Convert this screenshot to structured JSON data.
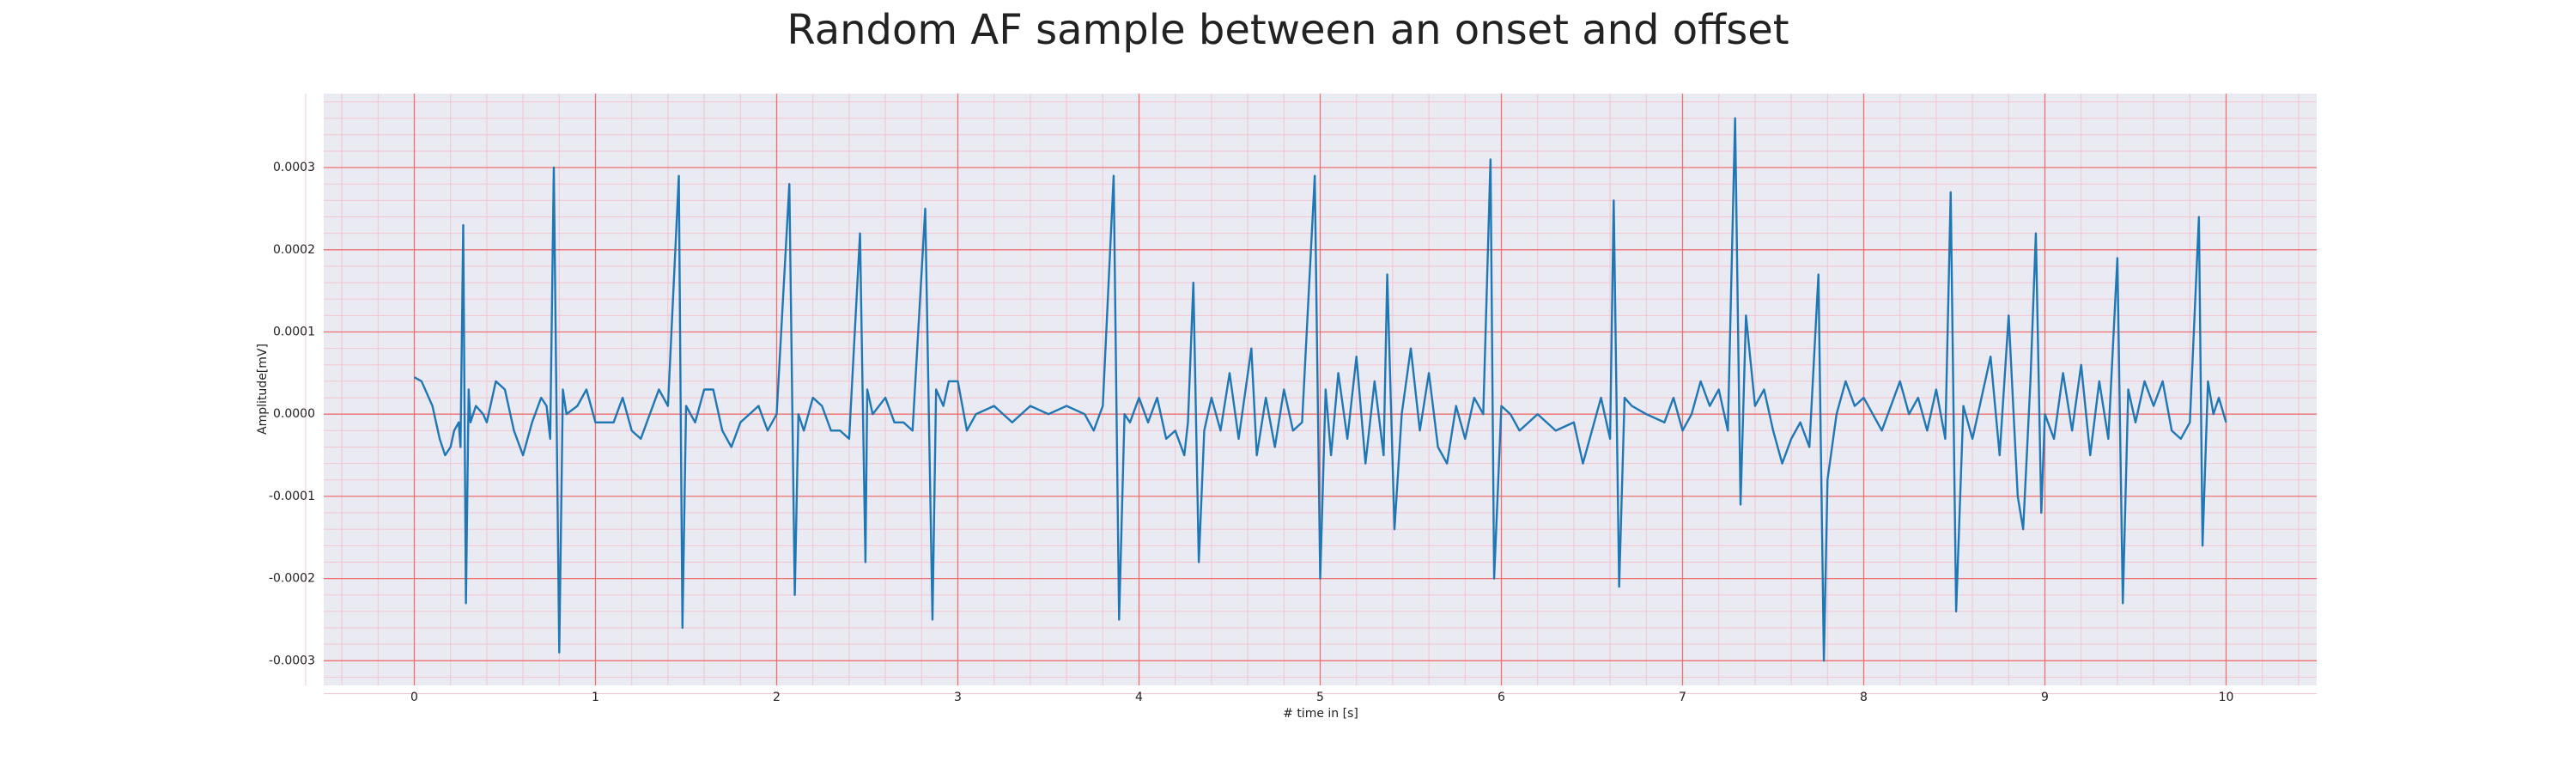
{
  "chart_data": {
    "type": "line",
    "title": "Random AF sample between an onset and offset",
    "xlabel": "# time in [s]",
    "ylabel": "Amplitude[mV]",
    "xlim": [
      -0.5,
      10.5
    ],
    "ylim": [
      -0.00033,
      0.00039
    ],
    "xticks": [
      0,
      1,
      2,
      3,
      4,
      5,
      6,
      7,
      8,
      9,
      10
    ],
    "yticks": [
      -0.0003,
      -0.0002,
      -0.0001,
      {
        "value": 0,
        "label": "0.0000"
      },
      0.0001,
      0.0002,
      0.0003
    ],
    "grid": true,
    "minor_grid": 5,
    "grid_color": "#f07070",
    "minor_grid_color": "#f3c4cf",
    "background": "#eaeaf2",
    "series": [
      {
        "color": "#1f77b4",
        "x": [
          0.0,
          0.04,
          0.1,
          0.14,
          0.17,
          0.2,
          0.22,
          0.245,
          0.255,
          0.27,
          0.285,
          0.3,
          0.31,
          0.34,
          0.38,
          0.4,
          0.45,
          0.5,
          0.55,
          0.6,
          0.65,
          0.7,
          0.73,
          0.75,
          0.77,
          0.8,
          0.82,
          0.84,
          0.9,
          0.95,
          1.0,
          1.05,
          1.1,
          1.15,
          1.2,
          1.25,
          1.3,
          1.35,
          1.4,
          1.46,
          1.48,
          1.5,
          1.55,
          1.6,
          1.65,
          1.7,
          1.75,
          1.8,
          1.85,
          1.9,
          1.95,
          2.0,
          2.07,
          2.1,
          2.12,
          2.15,
          2.2,
          2.25,
          2.3,
          2.35,
          2.4,
          2.46,
          2.49,
          2.5,
          2.53,
          2.6,
          2.65,
          2.7,
          2.75,
          2.82,
          2.86,
          2.88,
          2.92,
          2.95,
          3.0,
          3.05,
          3.1,
          3.2,
          3.3,
          3.4,
          3.5,
          3.6,
          3.7,
          3.75,
          3.8,
          3.86,
          3.89,
          3.92,
          3.95,
          4.0,
          4.05,
          4.1,
          4.15,
          4.2,
          4.25,
          4.27,
          4.3,
          4.33,
          4.36,
          4.4,
          4.45,
          4.5,
          4.55,
          4.62,
          4.65,
          4.7,
          4.75,
          4.8,
          4.85,
          4.9,
          4.97,
          5.0,
          5.03,
          5.06,
          5.1,
          5.15,
          5.2,
          5.25,
          5.3,
          5.35,
          5.37,
          5.41,
          5.45,
          5.5,
          5.55,
          5.6,
          5.65,
          5.7,
          5.75,
          5.8,
          5.85,
          5.9,
          5.94,
          5.96,
          6.0,
          6.05,
          6.1,
          6.2,
          6.3,
          6.4,
          6.45,
          6.5,
          6.55,
          6.6,
          6.62,
          6.65,
          6.68,
          6.72,
          6.8,
          6.9,
          6.95,
          7.0,
          7.05,
          7.1,
          7.15,
          7.2,
          7.25,
          7.29,
          7.32,
          7.35,
          7.4,
          7.45,
          7.5,
          7.55,
          7.6,
          7.65,
          7.7,
          7.75,
          7.78,
          7.8,
          7.85,
          7.9,
          7.95,
          8.0,
          8.1,
          8.2,
          8.25,
          8.3,
          8.35,
          8.4,
          8.45,
          8.48,
          8.51,
          8.55,
          8.6,
          8.65,
          8.7,
          8.75,
          8.8,
          8.85,
          8.88,
          8.92,
          8.95,
          8.98,
          9.0,
          9.05,
          9.1,
          9.15,
          9.2,
          9.25,
          9.3,
          9.35,
          9.4,
          9.43,
          9.46,
          9.5,
          9.55,
          9.6,
          9.65,
          9.7,
          9.75,
          9.8,
          9.85,
          9.87,
          9.9,
          9.93,
          9.96,
          10.0
        ],
        "values": [
          4.5e-05,
          4e-05,
          1e-05,
          -3e-05,
          -5e-05,
          -4e-05,
          -2e-05,
          -1e-05,
          -4e-05,
          0.00023,
          -0.00023,
          3e-05,
          -1e-05,
          1e-05,
          0.0,
          -1e-05,
          4e-05,
          3e-05,
          -2e-05,
          -5e-05,
          -1e-05,
          2e-05,
          1e-05,
          -3e-05,
          0.0003,
          -0.00029,
          3e-05,
          0.0,
          1e-05,
          3e-05,
          -1e-05,
          -1e-05,
          -1e-05,
          2e-05,
          -2e-05,
          -3e-05,
          0.0,
          3e-05,
          1e-05,
          0.00029,
          -0.00026,
          1e-05,
          -1e-05,
          3e-05,
          3e-05,
          -2e-05,
          -4e-05,
          -1e-05,
          0.0,
          1e-05,
          -2e-05,
          0.0,
          0.00028,
          -0.00022,
          0.0,
          -2e-05,
          2e-05,
          1e-05,
          -2e-05,
          -2e-05,
          -3e-05,
          0.00022,
          -0.00018,
          3e-05,
          0.0,
          2e-05,
          -1e-05,
          -1e-05,
          -2e-05,
          0.00025,
          -0.00025,
          3e-05,
          1e-05,
          4e-05,
          4e-05,
          -2e-05,
          0.0,
          1e-05,
          -1e-05,
          1e-05,
          0.0,
          1e-05,
          0.0,
          -2e-05,
          1e-05,
          0.00029,
          -0.00025,
          0.0,
          -1e-05,
          2e-05,
          -1e-05,
          2e-05,
          -3e-05,
          -2e-05,
          -5e-05,
          -1e-05,
          0.00016,
          -0.00018,
          -2e-05,
          2e-05,
          -2e-05,
          5e-05,
          -3e-05,
          8e-05,
          -5e-05,
          2e-05,
          -4e-05,
          3e-05,
          -2e-05,
          -1e-05,
          0.00029,
          -0.0002,
          3e-05,
          -5e-05,
          5e-05,
          -3e-05,
          7e-05,
          -6e-05,
          4e-05,
          -5e-05,
          0.00017,
          -0.00014,
          0.0,
          8e-05,
          -2e-05,
          5e-05,
          -4e-05,
          -6e-05,
          1e-05,
          -3e-05,
          2e-05,
          0.0,
          0.00031,
          -0.0002,
          1e-05,
          0.0,
          -2e-05,
          0.0,
          -2e-05,
          -1e-05,
          -6e-05,
          -2e-05,
          2e-05,
          -3e-05,
          0.00026,
          -0.00021,
          2e-05,
          1e-05,
          0.0,
          -1e-05,
          2e-05,
          -2e-05,
          0.0,
          4e-05,
          1e-05,
          3e-05,
          -2e-05,
          0.00036,
          -0.00011,
          0.00012,
          1e-05,
          3e-05,
          -2e-05,
          -6e-05,
          -3e-05,
          -1e-05,
          -4e-05,
          0.00017,
          -0.0003,
          -8e-05,
          0.0,
          4e-05,
          1e-05,
          2e-05,
          -2e-05,
          4e-05,
          0.0,
          2e-05,
          -2e-05,
          3e-05,
          -3e-05,
          0.00027,
          -0.00024,
          1e-05,
          -3e-05,
          2e-05,
          7e-05,
          -5e-05,
          0.00012,
          -0.0001,
          -0.00014,
          4e-05,
          0.00022,
          -0.00012,
          0.0,
          -3e-05,
          5e-05,
          -2e-05,
          6e-05,
          -5e-05,
          4e-05,
          -3e-05,
          0.00019,
          -0.00023,
          3e-05,
          -1e-05,
          4e-05,
          1e-05,
          4e-05,
          -2e-05,
          -3e-05,
          -1e-05,
          0.00024,
          -0.00016,
          4e-05,
          0.0,
          2e-05,
          -1e-05
        ]
      }
    ]
  }
}
